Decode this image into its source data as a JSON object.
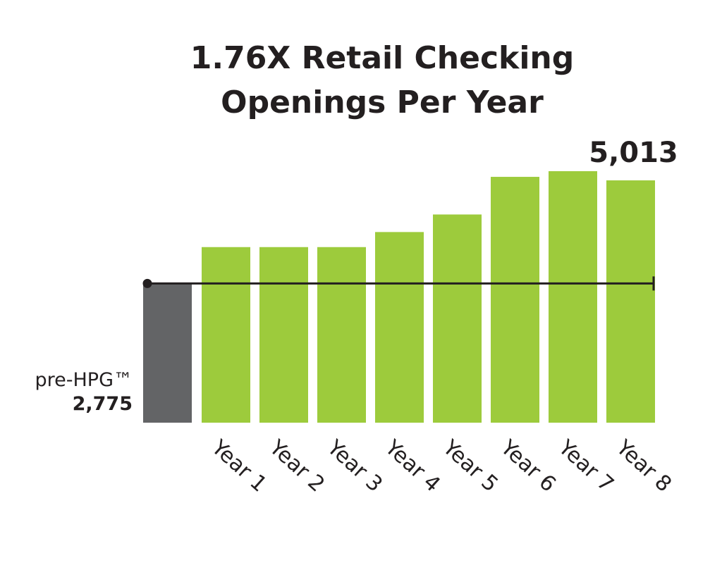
{
  "chart_data": {
    "type": "bar",
    "title_lines": [
      "1.76X Retail Checking",
      "Openings Per Year"
    ],
    "baseline": {
      "label": "pre-HPG™",
      "value_label": "2,775",
      "value": 2775,
      "color": "#636466"
    },
    "categories": [
      "Year 1",
      "Year 2",
      "Year 3",
      "Year 4",
      "Year 5",
      "Year 6",
      "Year 7",
      "Year 8"
    ],
    "values": [
      3500,
      3500,
      3500,
      3800,
      4150,
      4900,
      5013,
      4830
    ],
    "highlight": {
      "category": "Year 7",
      "value_label": "5,013"
    },
    "bar_color": "#9dcb3c",
    "reference_line_color": "#231f20",
    "ylim": [
      0,
      5013
    ],
    "grid": false
  }
}
